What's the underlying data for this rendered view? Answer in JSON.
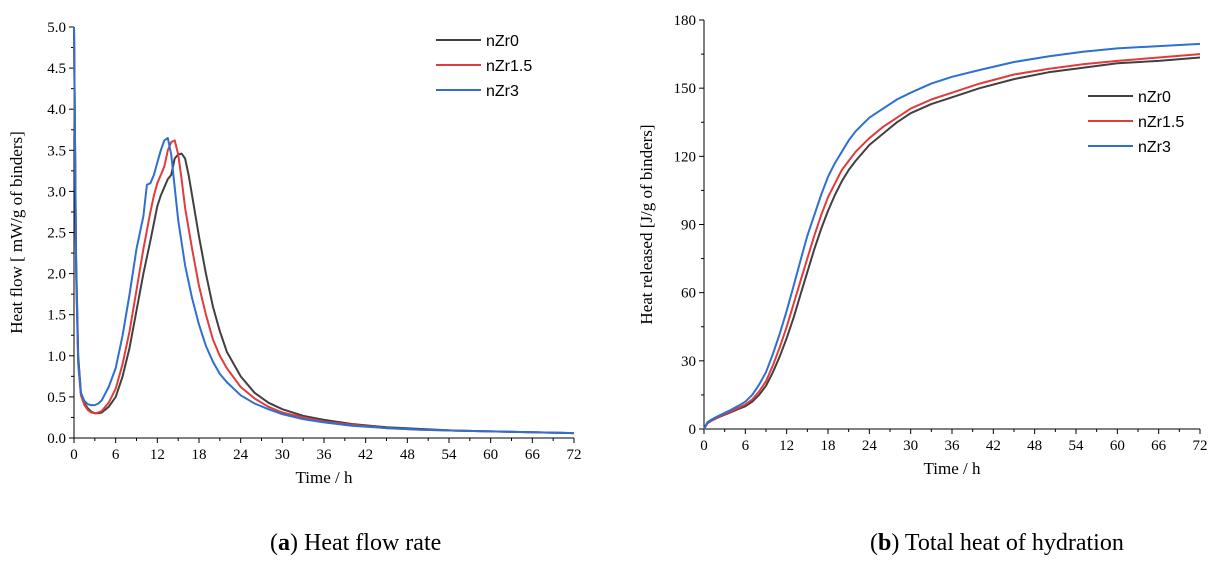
{
  "chart_data": [
    {
      "type": "line",
      "title": "",
      "xlabel": "Time / h",
      "ylabel": "Heat flow [ mW/g of binders]",
      "xlim": [
        0,
        72
      ],
      "ylim": [
        0,
        5
      ],
      "xticks": [
        0,
        6,
        12,
        18,
        24,
        30,
        36,
        42,
        48,
        54,
        60,
        66,
        72
      ],
      "yticks": [
        0,
        0.5,
        1,
        1.5,
        2,
        2.5,
        3,
        3.5,
        4,
        4.5,
        5
      ],
      "yticklabels": [
        "0.0",
        "0.5",
        "1.0",
        "1.5",
        "2.0",
        "2.5",
        "3.0",
        "3.5",
        "4.0",
        "4.5",
        "5.0"
      ],
      "legend_position": "top-right",
      "caption_letter": "a",
      "caption_text": "Heat flow rate",
      "series": [
        {
          "name": "nZr0",
          "color": "#404040",
          "x": [
            0,
            0.3,
            0.6,
            1,
            1.5,
            2,
            2.5,
            3,
            3.5,
            4,
            5,
            6,
            7,
            8,
            9,
            10,
            11,
            12,
            12.5,
            13,
            13.5,
            14,
            14.5,
            15,
            15.5,
            16,
            16.5,
            17,
            18,
            19,
            20,
            21,
            22,
            24,
            26,
            28,
            30,
            33,
            36,
            40,
            45,
            50,
            55,
            60,
            66,
            72
          ],
          "y": [
            5.0,
            2.2,
            1.0,
            0.55,
            0.42,
            0.36,
            0.32,
            0.3,
            0.3,
            0.31,
            0.38,
            0.5,
            0.75,
            1.1,
            1.55,
            2.0,
            2.4,
            2.82,
            2.95,
            3.05,
            3.15,
            3.2,
            3.4,
            3.45,
            3.46,
            3.4,
            3.2,
            2.95,
            2.45,
            2.0,
            1.6,
            1.3,
            1.05,
            0.75,
            0.55,
            0.43,
            0.35,
            0.27,
            0.22,
            0.17,
            0.13,
            0.11,
            0.09,
            0.08,
            0.07,
            0.06
          ]
        },
        {
          "name": "nZr1.5",
          "color": "#e03c3c",
          "x": [
            0,
            0.3,
            0.6,
            1,
            1.5,
            2,
            2.5,
            3,
            3.5,
            4,
            5,
            6,
            7,
            8,
            9,
            10,
            11,
            11.5,
            12,
            12.5,
            13,
            13.5,
            14,
            14.5,
            15,
            15.5,
            16,
            17,
            18,
            19,
            20,
            21,
            22,
            24,
            26,
            28,
            30,
            33,
            36,
            40,
            45,
            50,
            55,
            60,
            66,
            72
          ],
          "y": [
            5.0,
            2.0,
            0.9,
            0.52,
            0.4,
            0.34,
            0.31,
            0.3,
            0.31,
            0.33,
            0.43,
            0.6,
            0.9,
            1.3,
            1.8,
            2.3,
            2.75,
            2.95,
            3.1,
            3.2,
            3.3,
            3.5,
            3.6,
            3.62,
            3.45,
            3.15,
            2.8,
            2.3,
            1.85,
            1.5,
            1.2,
            1.0,
            0.85,
            0.62,
            0.48,
            0.38,
            0.31,
            0.25,
            0.2,
            0.16,
            0.12,
            0.1,
            0.09,
            0.08,
            0.07,
            0.06
          ]
        },
        {
          "name": "nZr3",
          "color": "#2e6fd1",
          "x": [
            0,
            0.3,
            0.6,
            1,
            1.5,
            2,
            2.5,
            3,
            3.5,
            4,
            5,
            6,
            7,
            8,
            9,
            10,
            10.5,
            11,
            11.5,
            12,
            12.5,
            13,
            13.5,
            14,
            14.5,
            15,
            16,
            17,
            18,
            19,
            20,
            21,
            22,
            24,
            26,
            28,
            30,
            33,
            36,
            40,
            45,
            50,
            55,
            60,
            66,
            72
          ],
          "y": [
            5.0,
            2.1,
            0.95,
            0.55,
            0.45,
            0.41,
            0.4,
            0.4,
            0.42,
            0.46,
            0.62,
            0.85,
            1.25,
            1.75,
            2.3,
            2.7,
            3.08,
            3.1,
            3.2,
            3.35,
            3.5,
            3.62,
            3.65,
            3.45,
            3.05,
            2.65,
            2.1,
            1.7,
            1.38,
            1.12,
            0.93,
            0.78,
            0.68,
            0.52,
            0.42,
            0.35,
            0.29,
            0.23,
            0.19,
            0.15,
            0.12,
            0.1,
            0.09,
            0.08,
            0.07,
            0.06
          ]
        }
      ]
    },
    {
      "type": "line",
      "title": "",
      "xlabel": "Time / h",
      "ylabel": "Heat released [J/g of binders]",
      "xlim": [
        0,
        72
      ],
      "ylim": [
        0,
        180
      ],
      "xticks": [
        0,
        6,
        12,
        18,
        24,
        30,
        36,
        42,
        48,
        54,
        60,
        66,
        72
      ],
      "yticks": [
        0,
        30,
        60,
        90,
        120,
        150,
        180
      ],
      "yticklabels": [
        "0",
        "30",
        "60",
        "90",
        "120",
        "150",
        "180"
      ],
      "legend_position": "right",
      "caption_letter": "b",
      "caption_text": "Total heat of hydration",
      "series": [
        {
          "name": "nZr0",
          "color": "#404040",
          "x": [
            0,
            0.5,
            1,
            2,
            3,
            4,
            5,
            6,
            7,
            8,
            9,
            10,
            11,
            12,
            13,
            14,
            15,
            16,
            17,
            18,
            19,
            20,
            21,
            22,
            24,
            26,
            28,
            30,
            33,
            36,
            40,
            45,
            50,
            55,
            60,
            66,
            72
          ],
          "y": [
            0,
            2.5,
            3.5,
            5,
            6.3,
            7.5,
            8.8,
            10,
            12,
            15,
            19,
            25,
            32,
            40,
            49,
            59,
            69,
            79,
            88,
            96,
            103,
            109,
            114,
            118,
            125,
            130,
            135,
            139,
            143,
            146,
            150,
            154,
            157,
            159,
            161,
            162,
            163.5
          ]
        },
        {
          "name": "nZr1.5",
          "color": "#e03c3c",
          "x": [
            0,
            0.5,
            1,
            2,
            3,
            4,
            5,
            6,
            7,
            8,
            9,
            10,
            11,
            12,
            13,
            14,
            15,
            16,
            17,
            18,
            19,
            20,
            21,
            22,
            24,
            26,
            28,
            30,
            33,
            36,
            40,
            45,
            50,
            55,
            60,
            66,
            72
          ],
          "y": [
            0,
            2.7,
            3.7,
            5.2,
            6.6,
            7.9,
            9.3,
            10.8,
            13,
            16.5,
            21,
            28,
            36,
            45,
            55,
            65,
            75,
            85,
            94,
            102,
            108,
            114,
            118,
            122,
            128,
            133,
            137,
            141,
            145,
            148,
            152,
            156,
            158.5,
            160.5,
            162,
            163.5,
            165
          ]
        },
        {
          "name": "nZr3",
          "color": "#2e6fd1",
          "x": [
            0,
            0.5,
            1,
            2,
            3,
            4,
            5,
            6,
            7,
            8,
            9,
            10,
            11,
            12,
            13,
            14,
            15,
            16,
            17,
            18,
            19,
            20,
            21,
            22,
            24,
            26,
            28,
            30,
            33,
            36,
            40,
            45,
            50,
            55,
            60,
            66,
            72
          ],
          "y": [
            0,
            3,
            4,
            5.6,
            7.1,
            8.6,
            10.2,
            12,
            15,
            19.5,
            25,
            33,
            42,
            52,
            63,
            74,
            85,
            94,
            103,
            111,
            117,
            122,
            127,
            131,
            137,
            141,
            145,
            148,
            152,
            155,
            158,
            161.5,
            164,
            166,
            167.5,
            168.5,
            169.5
          ]
        }
      ]
    }
  ]
}
